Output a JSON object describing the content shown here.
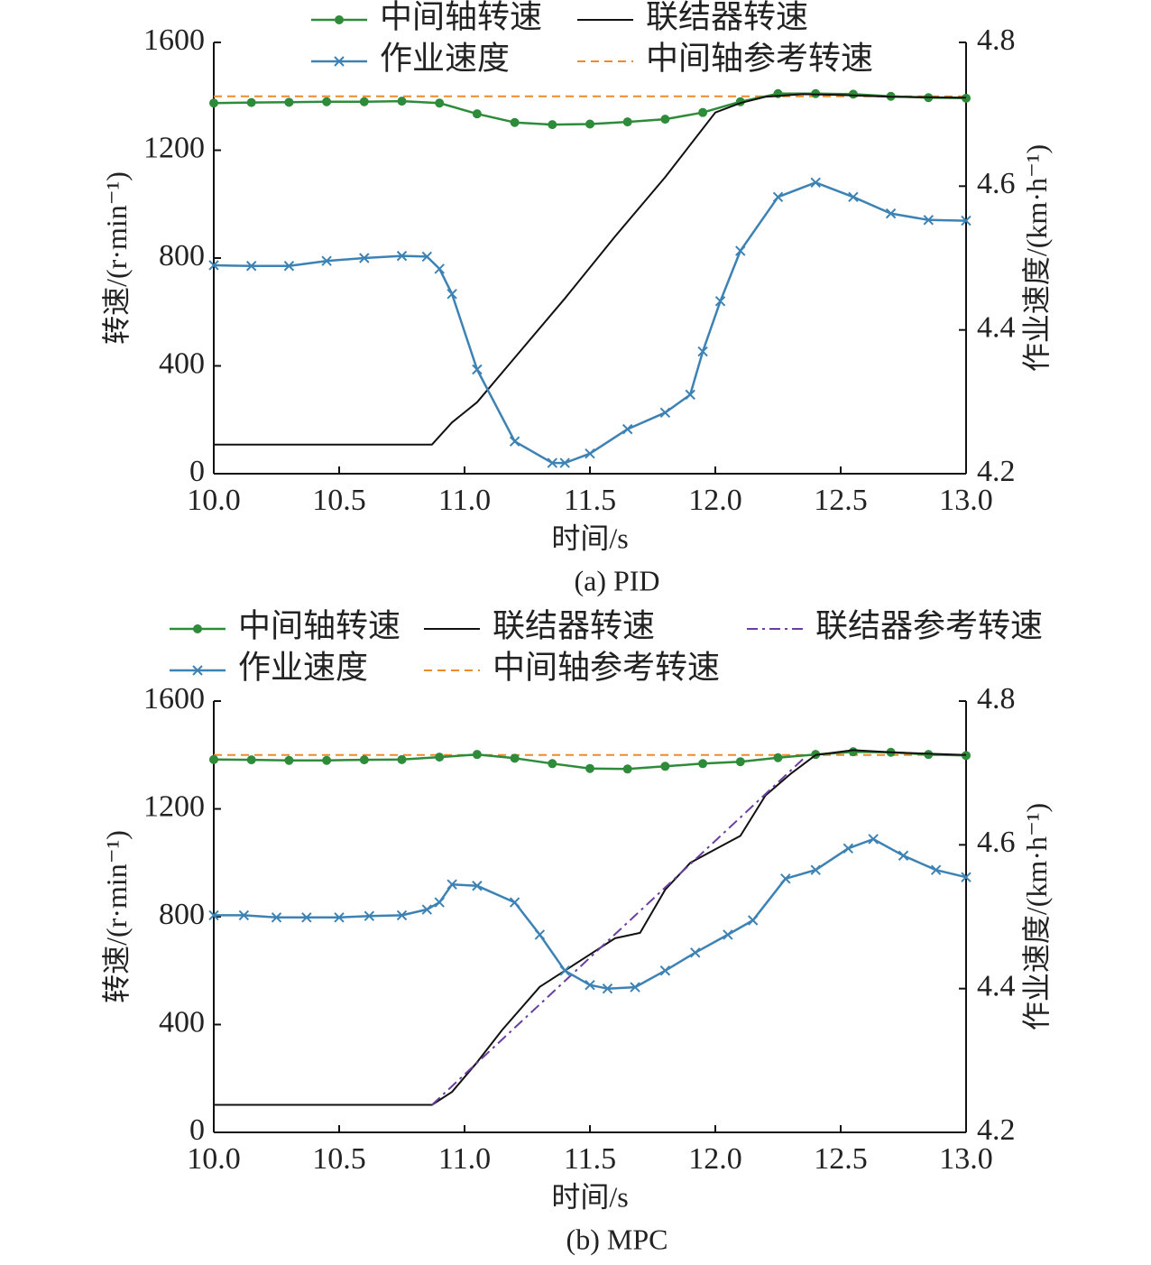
{
  "colors": {
    "intermediate_shaft": "#2e8b3a",
    "coupler": "#111111",
    "work_speed": "#3c82b4",
    "shaft_reference": "#ef8a2b",
    "coupler_reference": "#6a3fa0"
  },
  "chart_data": [
    {
      "type": "line",
      "caption": "(a) PID",
      "xlabel": "时间/s",
      "ylabel": "转速/(r·min⁻¹)",
      "y2label": "作业速度/(km·h⁻¹)",
      "xlim": [
        10.0,
        13.0
      ],
      "ylim": [
        0,
        1600
      ],
      "y2lim": [
        4.2,
        4.8
      ],
      "xticks": [
        "10.0",
        "10.5",
        "11.0",
        "11.5",
        "12.0",
        "12.5",
        "13.0"
      ],
      "yticks": [
        "0",
        "400",
        "800",
        "1200",
        "1600"
      ],
      "y2ticks": [
        "4.2",
        "4.4",
        "4.6",
        "4.8"
      ],
      "legend": [
        {
          "label": "中间轴转速",
          "series": "shaft"
        },
        {
          "label": "联结器转速",
          "series": "coupler"
        },
        {
          "label": "作业速度",
          "series": "work"
        },
        {
          "label": "中间轴参考转速",
          "series": "shaft_ref"
        }
      ],
      "series": [
        {
          "name": "中间轴转速",
          "key": "shaft",
          "axis": "left",
          "marker": "dot",
          "x": [
            10.0,
            10.15,
            10.3,
            10.45,
            10.6,
            10.75,
            10.9,
            11.05,
            11.2,
            11.35,
            11.5,
            11.65,
            11.8,
            11.95,
            12.1,
            12.25,
            12.4,
            12.55,
            12.7,
            12.85,
            13.0
          ],
          "y": [
            1375,
            1377,
            1378,
            1380,
            1380,
            1382,
            1375,
            1335,
            1303,
            1295,
            1297,
            1305,
            1315,
            1340,
            1380,
            1410,
            1410,
            1408,
            1400,
            1395,
            1393
          ]
        },
        {
          "name": "联结器转速",
          "key": "coupler",
          "axis": "left",
          "marker": "none",
          "x": [
            10.0,
            10.5,
            10.87,
            10.95,
            11.05,
            11.2,
            11.4,
            11.6,
            11.8,
            12.0,
            12.1,
            12.2,
            12.35,
            12.5,
            12.7,
            13.0
          ],
          "y": [
            108,
            108,
            108,
            190,
            265,
            430,
            650,
            880,
            1100,
            1340,
            1375,
            1398,
            1408,
            1405,
            1398,
            1395
          ]
        },
        {
          "name": "作业速度",
          "key": "work",
          "axis": "right",
          "marker": "x",
          "x": [
            10.0,
            10.15,
            10.3,
            10.45,
            10.6,
            10.75,
            10.85,
            10.9,
            10.95,
            11.05,
            11.2,
            11.35,
            11.4,
            11.5,
            11.65,
            11.8,
            11.9,
            11.95,
            12.02,
            12.1,
            12.25,
            12.4,
            12.55,
            12.7,
            12.85,
            13.0
          ],
          "y": [
            4.49,
            4.489,
            4.489,
            4.496,
            4.5,
            4.503,
            4.502,
            4.485,
            4.45,
            4.345,
            4.245,
            4.215,
            4.215,
            4.228,
            4.262,
            4.285,
            4.31,
            4.37,
            4.44,
            4.51,
            4.585,
            4.605,
            4.585,
            4.562,
            4.553,
            4.552
          ]
        },
        {
          "name": "中间轴参考转速",
          "key": "shaft_ref",
          "axis": "left",
          "marker": "none",
          "dashed": true,
          "x": [
            10.0,
            13.0
          ],
          "y": [
            1400,
            1400
          ]
        }
      ]
    },
    {
      "type": "line",
      "caption": "(b) MPC",
      "xlabel": "时间/s",
      "ylabel": "转速/(r·min⁻¹)",
      "y2label": "作业速度/(km·h⁻¹)",
      "xlim": [
        10.0,
        13.0
      ],
      "ylim": [
        0,
        1600
      ],
      "y2lim": [
        4.2,
        4.8
      ],
      "xticks": [
        "10.0",
        "10.5",
        "11.0",
        "11.5",
        "12.0",
        "12.5",
        "13.0"
      ],
      "yticks": [
        "0",
        "400",
        "800",
        "1200",
        "1600"
      ],
      "y2ticks": [
        "4.2",
        "4.4",
        "4.6",
        "4.8"
      ],
      "legend": [
        {
          "label": "中间轴转速",
          "series": "shaft"
        },
        {
          "label": "联结器转速",
          "series": "coupler"
        },
        {
          "label": "联结器参考转速",
          "series": "coupler_ref"
        },
        {
          "label": "作业速度",
          "series": "work"
        },
        {
          "label": "中间轴参考转速",
          "series": "shaft_ref"
        }
      ],
      "series": [
        {
          "name": "中间轴转速",
          "key": "shaft",
          "axis": "left",
          "marker": "dot",
          "x": [
            10.0,
            10.15,
            10.3,
            10.45,
            10.6,
            10.75,
            10.9,
            11.05,
            11.2,
            11.35,
            11.5,
            11.65,
            11.8,
            11.95,
            12.1,
            12.25,
            12.4,
            12.55,
            12.7,
            12.85,
            13.0
          ],
          "y": [
            1383,
            1382,
            1380,
            1380,
            1382,
            1383,
            1392,
            1402,
            1388,
            1368,
            1350,
            1348,
            1358,
            1368,
            1375,
            1390,
            1402,
            1412,
            1410,
            1402,
            1398
          ]
        },
        {
          "name": "联结器转速",
          "key": "coupler",
          "axis": "left",
          "marker": "none",
          "x": [
            10.0,
            10.5,
            10.87,
            10.95,
            11.05,
            11.15,
            11.3,
            11.4,
            11.5,
            11.6,
            11.7,
            11.8,
            11.9,
            12.0,
            12.1,
            12.2,
            12.3,
            12.4,
            12.55,
            12.7,
            13.0
          ],
          "y": [
            102,
            102,
            102,
            150,
            260,
            380,
            540,
            600,
            660,
            720,
            740,
            900,
            1000,
            1050,
            1100,
            1250,
            1330,
            1400,
            1418,
            1410,
            1400
          ]
        },
        {
          "name": "联结器参考转速",
          "key": "coupler_ref",
          "axis": "left",
          "marker": "none",
          "dashdot": true,
          "x": [
            10.87,
            12.35
          ],
          "y": [
            102,
            1385
          ]
        },
        {
          "name": "作业速度",
          "key": "work",
          "axis": "right",
          "marker": "x",
          "x": [
            10.0,
            10.12,
            10.25,
            10.37,
            10.5,
            10.62,
            10.75,
            10.85,
            10.9,
            10.95,
            11.05,
            11.2,
            11.3,
            11.4,
            11.5,
            11.57,
            11.68,
            11.8,
            11.92,
            12.05,
            12.15,
            12.28,
            12.4,
            12.53,
            12.63,
            12.75,
            12.88,
            13.0
          ],
          "y": [
            4.502,
            4.502,
            4.499,
            4.499,
            4.499,
            4.501,
            4.502,
            4.51,
            4.52,
            4.545,
            4.543,
            4.52,
            4.475,
            4.425,
            4.405,
            4.4,
            4.402,
            4.425,
            4.45,
            4.475,
            4.495,
            4.553,
            4.565,
            4.595,
            4.608,
            4.585,
            4.565,
            4.555
          ]
        },
        {
          "name": "中间轴参考转速",
          "key": "shaft_ref",
          "axis": "left",
          "marker": "none",
          "dashed": true,
          "x": [
            10.0,
            13.0
          ],
          "y": [
            1400,
            1400
          ]
        }
      ]
    }
  ]
}
